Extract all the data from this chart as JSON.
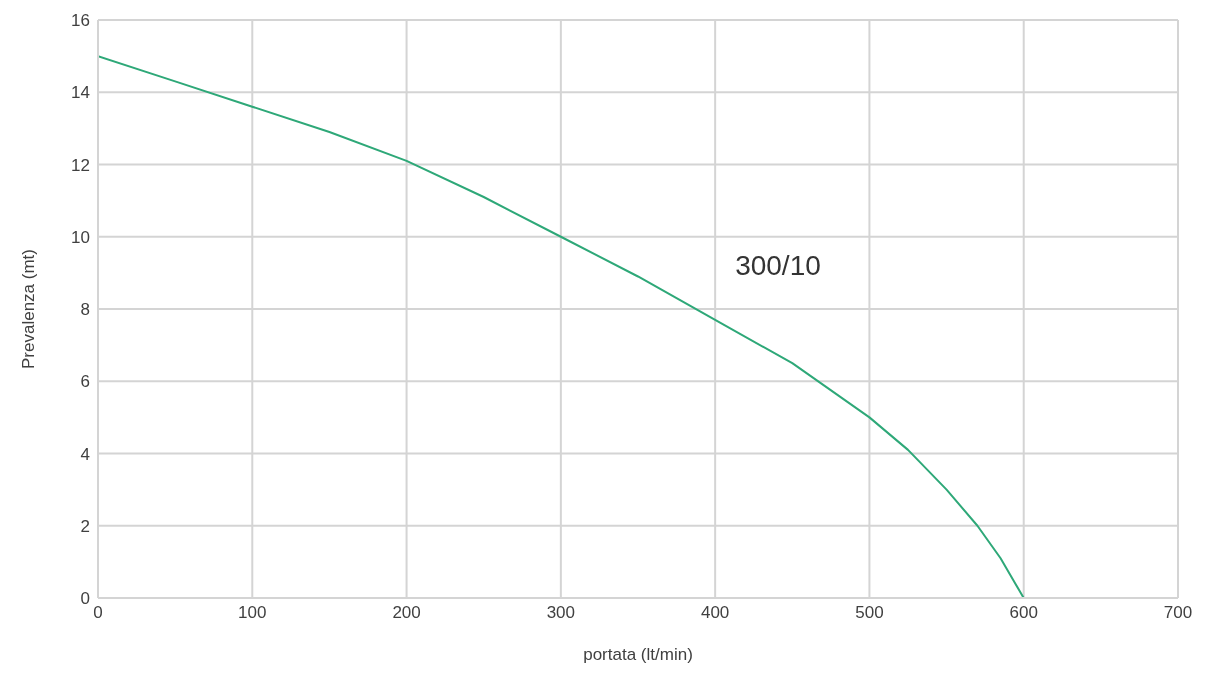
{
  "chart_data": {
    "type": "line",
    "xlabel": "portata (lt/min)",
    "ylabel": "Prevalenza (mt)",
    "x": [
      0,
      50,
      100,
      150,
      200,
      250,
      300,
      350,
      400,
      450,
      500,
      525,
      550,
      570,
      585,
      600
    ],
    "series": [
      {
        "name": "300/10",
        "color": "#2ea878",
        "values": [
          15,
          14.3,
          13.6,
          12.9,
          12.1,
          11.1,
          10,
          8.9,
          7.7,
          6.5,
          5,
          4.1,
          3,
          2,
          1.1,
          0
        ]
      }
    ],
    "xlim": [
      0,
      700
    ],
    "xticks": [
      0,
      100,
      200,
      300,
      400,
      500,
      600,
      700
    ],
    "ylim": [
      0,
      16
    ],
    "yticks": [
      0,
      2,
      4,
      6,
      8,
      10,
      12,
      14,
      16
    ],
    "grid": true,
    "legend": false,
    "marker": "none",
    "line_style": "solid"
  }
}
